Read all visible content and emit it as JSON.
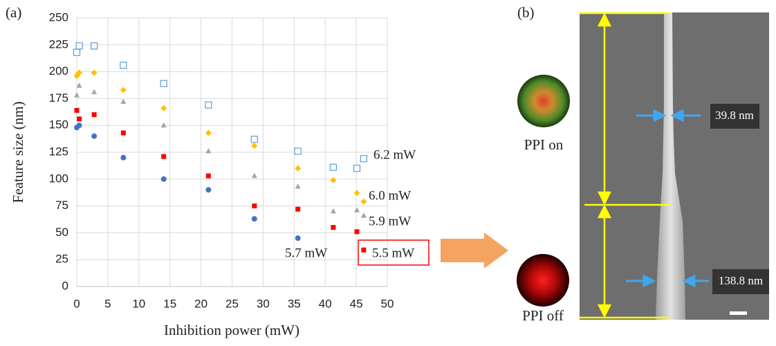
{
  "chart_data": {
    "type": "scatter",
    "panel_label": "(a)",
    "x_label": "Inhibition power (mW)",
    "y_label": "Feature size (nm)",
    "xlim": [
      0,
      50
    ],
    "xticks": [
      0,
      5,
      10,
      15,
      20,
      25,
      30,
      35,
      40,
      45,
      50
    ],
    "ylim": [
      0,
      250
    ],
    "yticks": [
      0,
      25,
      50,
      75,
      100,
      125,
      150,
      175,
      200,
      225,
      250
    ],
    "grid": true,
    "series": [
      {
        "name": "6.2 mW",
        "color": "#5b9bd5",
        "marker": "square-open",
        "x": [
          0,
          0.4,
          2.8,
          7.5,
          14,
          21.2,
          28.6,
          35.6,
          41.3,
          45.1,
          46.2
        ],
        "values": [
          218,
          224,
          224,
          206,
          189,
          169,
          137,
          126,
          111,
          110,
          119
        ]
      },
      {
        "name": "6.0 mW",
        "color": "#ffc000",
        "marker": "diamond",
        "x": [
          0,
          0.2,
          0.4,
          2.8,
          7.5,
          14,
          21.2,
          28.6,
          35.6,
          41.3,
          45.1,
          46.2
        ],
        "values": [
          196,
          198,
          199,
          199,
          183,
          166,
          143,
          131,
          110,
          99,
          87,
          79
        ]
      },
      {
        "name": "5.9 mW",
        "color": "#a5a5a5",
        "marker": "triangle",
        "x": [
          0,
          0.4,
          2.8,
          7.5,
          14,
          21.2,
          28.6,
          35.6,
          41.3,
          45.1,
          46.2
        ],
        "values": [
          178,
          187,
          181,
          172,
          150,
          126,
          103,
          93,
          70,
          71,
          66
        ]
      },
      {
        "name": "5.7 mW",
        "color": "#ff0000",
        "marker": "square",
        "x": [
          0,
          0.4,
          2.8,
          7.5,
          14,
          21.2,
          28.6,
          35.6,
          41.3,
          45.1,
          46.2
        ],
        "values": [
          164,
          156,
          160,
          143,
          121,
          103,
          75,
          72,
          55,
          51,
          34
        ]
      },
      {
        "name": "5.5 mW",
        "color": "#4472c4",
        "marker": "circle",
        "x": [
          0,
          0.4,
          2.8,
          7.5,
          14,
          21.2,
          28.6,
          35.6
        ],
        "values": [
          148,
          150,
          140,
          120,
          100,
          90,
          63,
          45
        ]
      }
    ]
  },
  "panel_b": {
    "panel_label": "(b)",
    "ppi_on": "PPI on",
    "ppi_off": "PPI off",
    "width_top": "39.8 nm",
    "width_bottom": "138.8 nm"
  }
}
